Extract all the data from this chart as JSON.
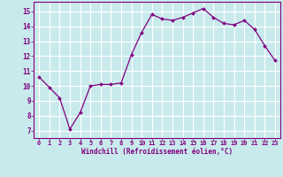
{
  "x": [
    0,
    1,
    2,
    3,
    4,
    5,
    6,
    7,
    8,
    9,
    10,
    11,
    12,
    13,
    14,
    15,
    16,
    17,
    18,
    19,
    20,
    21,
    22,
    23
  ],
  "y": [
    10.6,
    9.9,
    9.2,
    7.1,
    8.2,
    10.0,
    10.1,
    10.1,
    10.2,
    12.1,
    13.6,
    14.8,
    14.5,
    14.4,
    14.6,
    14.9,
    15.2,
    14.6,
    14.2,
    14.1,
    14.4,
    13.8,
    12.7,
    11.7
  ],
  "line_color": "#800080",
  "marker_color": "#800080",
  "bg_color": "#c8eaec",
  "grid_color": "#ffffff",
  "xlabel": "Windchill (Refroidissement éolien,°C)",
  "xlabel_color": "#800080",
  "tick_color": "#800080",
  "xlim": [
    -0.5,
    23.5
  ],
  "ylim": [
    6.5,
    15.65
  ],
  "yticks": [
    7,
    8,
    9,
    10,
    11,
    12,
    13,
    14,
    15
  ],
  "xtick_labels": [
    "0",
    "1",
    "2",
    "3",
    "4",
    "5",
    "6",
    "7",
    "8",
    "9",
    "10",
    "11",
    "12",
    "13",
    "14",
    "15",
    "16",
    "17",
    "18",
    "19",
    "20",
    "21",
    "22",
    "23"
  ],
  "tick_fontsize": 5.0,
  "xlabel_fontsize": 5.5,
  "ytick_fontsize": 5.5
}
